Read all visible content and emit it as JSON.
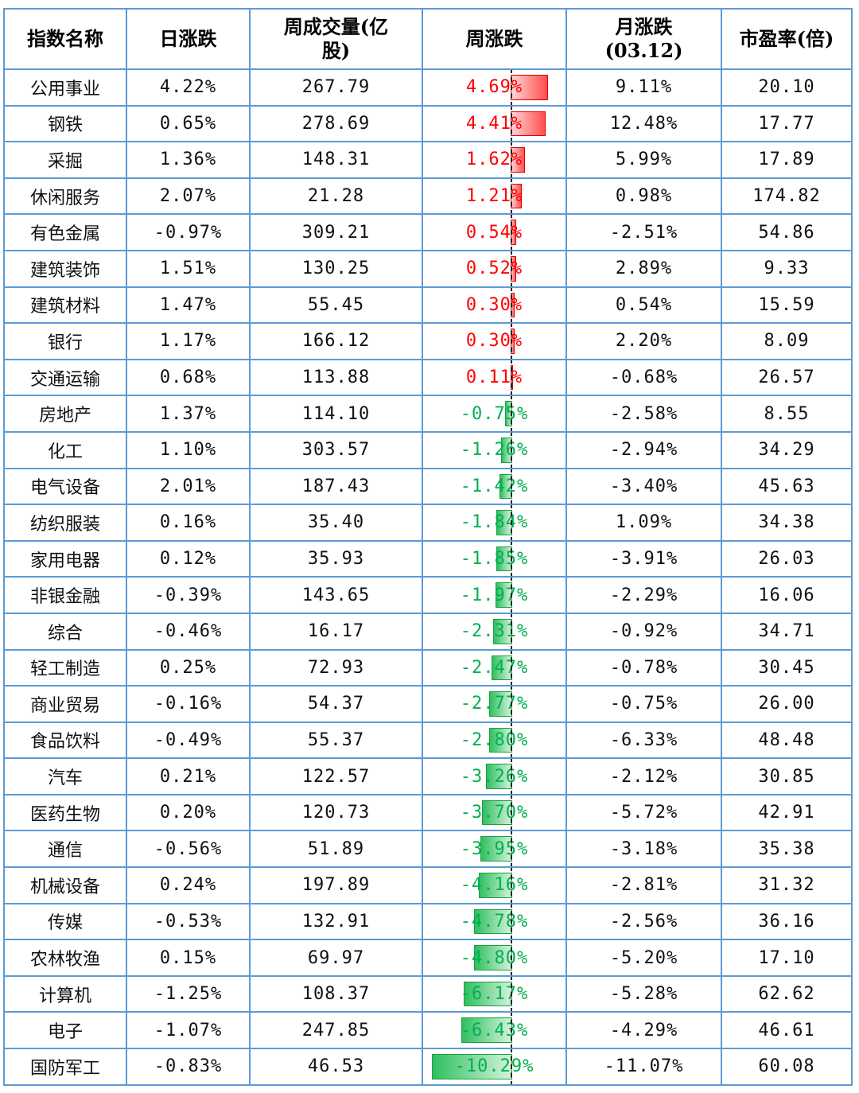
{
  "headers": {
    "name": "指数名称",
    "daily": "日涨跌",
    "volume_line1": "周成交量(亿",
    "volume_line2": "股)",
    "weekly": "周涨跌",
    "monthly_line1": "月涨跌",
    "monthly_line2": "(03.12)",
    "pe": "市盈率(倍)"
  },
  "colors": {
    "positive": "#ff0000",
    "negative": "#00b050",
    "border": "#5b9bd5"
  },
  "rows": [
    {
      "name": "公用事业",
      "daily": "4.22%",
      "volume": "267.79",
      "weekly": "4.69%",
      "monthly": "9.11%",
      "pe": "20.10",
      "weekly_value": 4.69
    },
    {
      "name": "钢铁",
      "daily": "0.65%",
      "volume": "278.69",
      "weekly": "4.41%",
      "monthly": "12.48%",
      "pe": "17.77",
      "weekly_value": 4.41
    },
    {
      "name": "采掘",
      "daily": "1.36%",
      "volume": "148.31",
      "weekly": "1.62%",
      "monthly": "5.99%",
      "pe": "17.89",
      "weekly_value": 1.62
    },
    {
      "name": "休闲服务",
      "daily": "2.07%",
      "volume": "21.28",
      "weekly": "1.21%",
      "monthly": "0.98%",
      "pe": "174.82",
      "weekly_value": 1.21
    },
    {
      "name": "有色金属",
      "daily": "-0.97%",
      "volume": "309.21",
      "weekly": "0.54%",
      "monthly": "-2.51%",
      "pe": "54.86",
      "weekly_value": 0.54
    },
    {
      "name": "建筑装饰",
      "daily": "1.51%",
      "volume": "130.25",
      "weekly": "0.52%",
      "monthly": "2.89%",
      "pe": "9.33",
      "weekly_value": 0.52
    },
    {
      "name": "建筑材料",
      "daily": "1.47%",
      "volume": "55.45",
      "weekly": "0.30%",
      "monthly": "0.54%",
      "pe": "15.59",
      "weekly_value": 0.3
    },
    {
      "name": "银行",
      "daily": "1.17%",
      "volume": "166.12",
      "weekly": "0.30%",
      "monthly": "2.20%",
      "pe": "8.09",
      "weekly_value": 0.3
    },
    {
      "name": "交通运输",
      "daily": "0.68%",
      "volume": "113.88",
      "weekly": "0.11%",
      "monthly": "-0.68%",
      "pe": "26.57",
      "weekly_value": 0.11
    },
    {
      "name": "房地产",
      "daily": "1.37%",
      "volume": "114.10",
      "weekly": "-0.75%",
      "monthly": "-2.58%",
      "pe": "8.55",
      "weekly_value": -0.75
    },
    {
      "name": "化工",
      "daily": "1.10%",
      "volume": "303.57",
      "weekly": "-1.26%",
      "monthly": "-2.94%",
      "pe": "34.29",
      "weekly_value": -1.26
    },
    {
      "name": "电气设备",
      "daily": "2.01%",
      "volume": "187.43",
      "weekly": "-1.42%",
      "monthly": "-3.40%",
      "pe": "45.63",
      "weekly_value": -1.42
    },
    {
      "name": "纺织服装",
      "daily": "0.16%",
      "volume": "35.40",
      "weekly": "-1.84%",
      "monthly": "1.09%",
      "pe": "34.38",
      "weekly_value": -1.84
    },
    {
      "name": "家用电器",
      "daily": "0.12%",
      "volume": "35.93",
      "weekly": "-1.85%",
      "monthly": "-3.91%",
      "pe": "26.03",
      "weekly_value": -1.85
    },
    {
      "name": "非银金融",
      "daily": "-0.39%",
      "volume": "143.65",
      "weekly": "-1.97%",
      "monthly": "-2.29%",
      "pe": "16.06",
      "weekly_value": -1.97
    },
    {
      "name": "综合",
      "daily": "-0.46%",
      "volume": "16.17",
      "weekly": "-2.31%",
      "monthly": "-0.92%",
      "pe": "34.71",
      "weekly_value": -2.31
    },
    {
      "name": "轻工制造",
      "daily": "0.25%",
      "volume": "72.93",
      "weekly": "-2.47%",
      "monthly": "-0.78%",
      "pe": "30.45",
      "weekly_value": -2.47
    },
    {
      "name": "商业贸易",
      "daily": "-0.16%",
      "volume": "54.37",
      "weekly": "-2.77%",
      "monthly": "-0.75%",
      "pe": "26.00",
      "weekly_value": -2.77
    },
    {
      "name": "食品饮料",
      "daily": "-0.49%",
      "volume": "55.37",
      "weekly": "-2.80%",
      "monthly": "-6.33%",
      "pe": "48.48",
      "weekly_value": -2.8
    },
    {
      "name": "汽车",
      "daily": "0.21%",
      "volume": "122.57",
      "weekly": "-3.26%",
      "monthly": "-2.12%",
      "pe": "30.85",
      "weekly_value": -3.26
    },
    {
      "name": "医药生物",
      "daily": "0.20%",
      "volume": "120.73",
      "weekly": "-3.70%",
      "monthly": "-5.72%",
      "pe": "42.91",
      "weekly_value": -3.7
    },
    {
      "name": "通信",
      "daily": "-0.56%",
      "volume": "51.89",
      "weekly": "-3.95%",
      "monthly": "-3.18%",
      "pe": "35.38",
      "weekly_value": -3.95
    },
    {
      "name": "机械设备",
      "daily": "0.24%",
      "volume": "197.89",
      "weekly": "-4.16%",
      "monthly": "-2.81%",
      "pe": "31.32",
      "weekly_value": -4.16
    },
    {
      "name": "传媒",
      "daily": "-0.53%",
      "volume": "132.91",
      "weekly": "-4.78%",
      "monthly": "-2.56%",
      "pe": "36.16",
      "weekly_value": -4.78
    },
    {
      "name": "农林牧渔",
      "daily": "0.15%",
      "volume": "69.97",
      "weekly": "-4.80%",
      "monthly": "-5.20%",
      "pe": "17.10",
      "weekly_value": -4.8
    },
    {
      "name": "计算机",
      "daily": "-1.25%",
      "volume": "108.37",
      "weekly": "-6.17%",
      "monthly": "-5.28%",
      "pe": "62.62",
      "weekly_value": -6.17
    },
    {
      "name": "电子",
      "daily": "-1.07%",
      "volume": "247.85",
      "weekly": "-6.43%",
      "monthly": "-4.29%",
      "pe": "46.61",
      "weekly_value": -6.43
    },
    {
      "name": "国防军工",
      "daily": "-0.83%",
      "volume": "46.53",
      "weekly": "-10.29%",
      "monthly": "-11.07%",
      "pe": "60.08",
      "weekly_value": -10.29
    }
  ]
}
